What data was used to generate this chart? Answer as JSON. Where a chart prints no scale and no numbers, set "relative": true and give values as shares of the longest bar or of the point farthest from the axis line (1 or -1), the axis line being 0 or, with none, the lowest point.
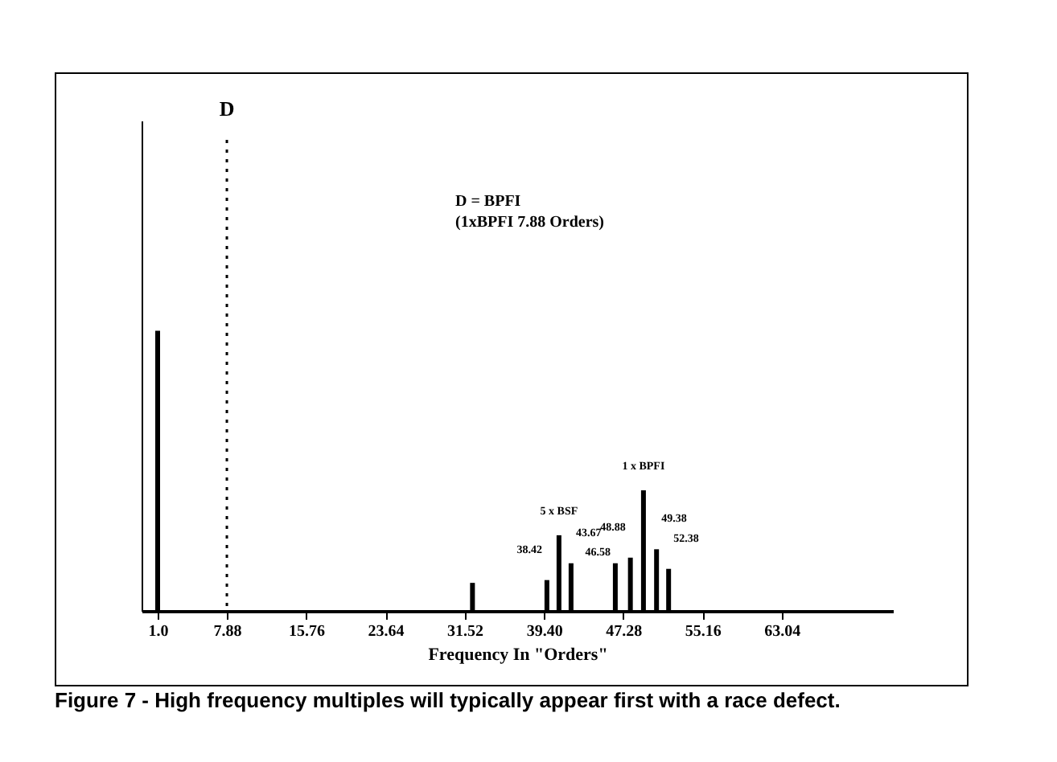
{
  "chart_data": {
    "type": "bar",
    "relative": true,
    "xlabel": "Frequency In \"Orders\"",
    "x": [
      1.0,
      32.3,
      39.7,
      40.9,
      42.1,
      46.5,
      48.0,
      49.3,
      50.6,
      51.8
    ],
    "values": [
      1,
      0.1,
      0.11,
      0.27,
      0.17,
      0.17,
      0.19,
      0.43,
      0.22,
      0.15
    ],
    "color": "#000000",
    "xlim": [
      -0.6,
      74.1
    ],
    "xticks": [
      {
        "value": 1,
        "label": "1.0"
      },
      7.88,
      15.76,
      23.64,
      31.52,
      {
        "value": 39.4,
        "label": "39.40"
      },
      47.28,
      55.16,
      63.04
    ],
    "ref_lines": [
      {
        "axis": "x",
        "value": 7.88,
        "label": "D",
        "line_style": "dotted",
        "color": "#000000"
      }
    ],
    "annotations": [
      "D = BPFI",
      "(1xBPFI 7.88 Orders)",
      {
        "text": "38.42",
        "x": 39.7,
        "y": 0.11
      },
      {
        "text": "5 x BSF",
        "x": 40.9,
        "y": 0.27
      },
      {
        "text": "43.67",
        "x": 42.1,
        "y": 0.17
      },
      {
        "text": "46.58",
        "x": 46.5,
        "y": 0.17
      },
      {
        "text": "48.88",
        "x": 48.0,
        "y": 0.19
      },
      {
        "text": "1 x BPFI",
        "x": 49.3,
        "y": 0.43
      },
      {
        "text": "49.38",
        "x": 50.6,
        "y": 0.22
      },
      {
        "text": "52.38",
        "x": 51.8,
        "y": 0.15
      },
      "Figure 7 - High frequency multiples will typically appear first with a race defect."
    ],
    "grid": false
  }
}
